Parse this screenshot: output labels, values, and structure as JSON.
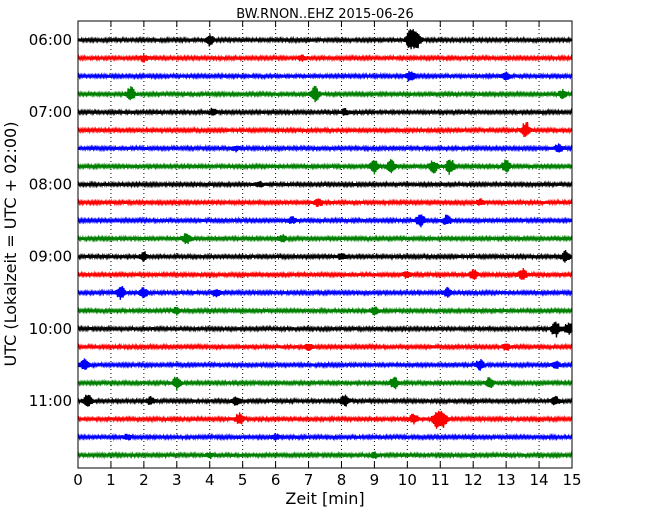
{
  "chart_data": {
    "type": "line",
    "title": "BW.RNON..EHZ 2015-06-26",
    "xlabel": "Zeit  [min]",
    "ylabel": "UTC (Lokalzeit = UTC + 02:00)",
    "xlim": [
      0,
      15
    ],
    "xticks": [
      "0",
      "1",
      "2",
      "3",
      "4",
      "5",
      "6",
      "7",
      "8",
      "9",
      "10",
      "11",
      "12",
      "13",
      "14",
      "15"
    ],
    "y_tick_labels": [
      "06:00",
      "07:00",
      "08:00",
      "09:00",
      "10:00",
      "11:00"
    ],
    "grid": "vertical dotted",
    "trace_colors": [
      "#000000",
      "#ff0000",
      "#0000ff",
      "#008000"
    ],
    "traces": [
      {
        "start": "06:00",
        "events": [
          [
            4.0,
            2.2
          ],
          [
            10.1,
            4.5
          ],
          [
            10.3,
            3.0
          ]
        ]
      },
      {
        "start": "06:15",
        "events": [
          [
            2.0,
            1.2
          ],
          [
            6.8,
            1.0
          ]
        ]
      },
      {
        "start": "06:30",
        "events": [
          [
            10.1,
            2.2
          ],
          [
            13.0,
            1.6
          ]
        ]
      },
      {
        "start": "06:45",
        "events": [
          [
            1.6,
            3.0
          ],
          [
            7.2,
            3.0
          ],
          [
            14.7,
            1.6
          ]
        ]
      },
      {
        "start": "07:00",
        "events": [
          [
            4.1,
            1.4
          ],
          [
            8.1,
            1.2
          ]
        ]
      },
      {
        "start": "07:15",
        "events": [
          [
            13.6,
            3.5
          ]
        ]
      },
      {
        "start": "07:30",
        "events": [
          [
            14.6,
            1.6
          ],
          [
            4.8,
            1.0
          ]
        ]
      },
      {
        "start": "07:45",
        "events": [
          [
            9.0,
            3.0
          ],
          [
            9.5,
            2.5
          ],
          [
            10.8,
            2.5
          ],
          [
            11.3,
            3.2
          ],
          [
            13.0,
            2.6
          ]
        ]
      },
      {
        "start": "08:00",
        "events": [
          [
            5.5,
            1.0
          ]
        ]
      },
      {
        "start": "08:15",
        "events": [
          [
            7.3,
            1.5
          ],
          [
            12.2,
            1.2
          ]
        ]
      },
      {
        "start": "08:30",
        "events": [
          [
            10.4,
            3.0
          ],
          [
            11.2,
            2.0
          ],
          [
            6.5,
            1.3
          ]
        ]
      },
      {
        "start": "08:45",
        "events": [
          [
            3.3,
            2.2
          ],
          [
            6.2,
            1.5
          ]
        ]
      },
      {
        "start": "09:00",
        "events": [
          [
            2.0,
            1.8
          ],
          [
            14.8,
            2.2
          ],
          [
            8.0,
            1.2
          ]
        ]
      },
      {
        "start": "09:15",
        "events": [
          [
            12.0,
            2.0
          ],
          [
            13.5,
            2.5
          ],
          [
            10.0,
            1.4
          ]
        ]
      },
      {
        "start": "09:30",
        "events": [
          [
            1.3,
            2.6
          ],
          [
            2.0,
            2.0
          ],
          [
            4.2,
            1.6
          ],
          [
            11.2,
            1.8
          ]
        ]
      },
      {
        "start": "09:45",
        "events": [
          [
            9.0,
            1.6
          ],
          [
            3.0,
            1.3
          ]
        ]
      },
      {
        "start": "10:00",
        "events": [
          [
            14.5,
            3.2
          ],
          [
            14.9,
            2.5
          ]
        ]
      },
      {
        "start": "10:15",
        "events": [
          [
            13.0,
            1.4
          ],
          [
            7.0,
            1.1
          ]
        ]
      },
      {
        "start": "10:30",
        "events": [
          [
            0.2,
            2.0
          ],
          [
            12.2,
            2.0
          ],
          [
            14.5,
            1.5
          ]
        ]
      },
      {
        "start": "10:45",
        "events": [
          [
            3.0,
            2.6
          ],
          [
            9.6,
            2.4
          ],
          [
            12.5,
            2.2
          ]
        ]
      },
      {
        "start": "11:00",
        "events": [
          [
            0.3,
            3.0
          ],
          [
            8.1,
            2.5
          ],
          [
            14.5,
            1.6
          ],
          [
            2.2,
            1.5
          ],
          [
            4.8,
            1.5
          ]
        ]
      },
      {
        "start": "11:15",
        "events": [
          [
            4.9,
            2.3
          ],
          [
            10.2,
            2.0
          ],
          [
            10.9,
            3.8
          ],
          [
            11.1,
            3.0
          ]
        ]
      },
      {
        "start": "11:30",
        "events": [
          [
            1.5,
            1.2
          ],
          [
            6.0,
            1.0
          ]
        ]
      },
      {
        "start": "11:45",
        "events": [
          [
            4.0,
            1.0
          ],
          [
            9.0,
            1.0
          ]
        ]
      }
    ]
  }
}
